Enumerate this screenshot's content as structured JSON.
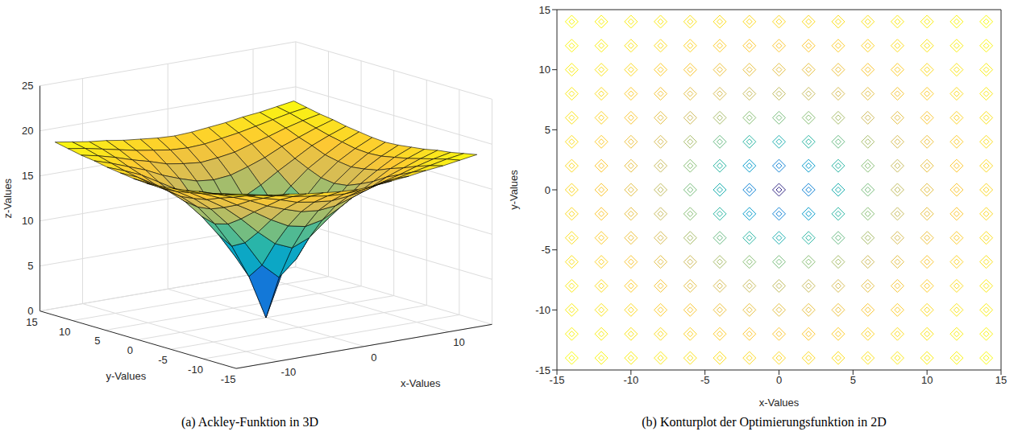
{
  "chart_data": [
    {
      "type": "surface3d",
      "caption": "(a) Ackley-Funktion in 3D",
      "x_label": "x-Values",
      "y_label": "y-Values",
      "z_label": "z-Values",
      "xlim": [
        -15,
        15
      ],
      "ylim": [
        -15,
        15
      ],
      "zlim": [
        0,
        25
      ],
      "xticks": [
        -10,
        0,
        10
      ],
      "yticks": [
        -15,
        -10,
        -5,
        0,
        5,
        10,
        15
      ],
      "zticks": [
        0,
        5,
        10,
        15,
        20,
        25
      ],
      "grid": true,
      "x": [
        -14,
        -12,
        -10,
        -8,
        -6,
        -4,
        -2,
        0,
        2,
        4,
        6,
        8,
        10,
        12,
        14
      ],
      "y": [
        -14,
        -12,
        -10,
        -8,
        -6,
        -4,
        -2,
        0,
        2,
        4,
        6,
        8,
        10,
        12,
        14
      ],
      "z": [
        [
          18.8,
          18.5,
          18.2,
          18.0,
          17.7,
          17.5,
          17.3,
          17.2,
          17.3,
          17.5,
          17.7,
          18.0,
          18.2,
          18.5,
          18.8
        ],
        [
          18.5,
          18.2,
          17.8,
          17.4,
          17.0,
          16.7,
          16.4,
          16.3,
          16.4,
          16.7,
          17.0,
          17.4,
          17.8,
          18.2,
          18.5
        ],
        [
          18.2,
          17.8,
          17.3,
          16.7,
          16.2,
          15.6,
          15.3,
          15.1,
          15.3,
          15.6,
          16.2,
          16.7,
          17.3,
          17.8,
          18.2
        ],
        [
          18.0,
          17.4,
          16.7,
          16.0,
          15.1,
          14.4,
          13.8,
          13.6,
          13.8,
          14.4,
          15.1,
          16.0,
          16.7,
          17.4,
          18.0
        ],
        [
          17.7,
          17.0,
          16.2,
          15.1,
          14.0,
          12.8,
          11.8,
          11.4,
          11.8,
          12.8,
          14.0,
          15.1,
          16.2,
          17.0,
          17.7
        ],
        [
          17.5,
          16.7,
          15.6,
          14.4,
          12.8,
          11.0,
          9.4,
          8.6,
          9.4,
          11.0,
          12.8,
          14.4,
          15.6,
          16.7,
          17.5
        ],
        [
          17.3,
          16.4,
          15.3,
          13.8,
          11.8,
          9.4,
          6.6,
          4.9,
          6.6,
          9.4,
          11.8,
          13.8,
          15.3,
          16.4,
          17.3
        ],
        [
          17.2,
          16.3,
          15.1,
          13.6,
          11.4,
          8.6,
          4.9,
          0,
          4.9,
          8.6,
          11.4,
          13.6,
          15.1,
          16.3,
          17.2
        ],
        [
          17.3,
          16.4,
          15.3,
          13.8,
          11.8,
          9.4,
          6.6,
          4.9,
          6.6,
          9.4,
          11.8,
          13.8,
          15.3,
          16.4,
          17.3
        ],
        [
          17.5,
          16.7,
          15.6,
          14.4,
          12.8,
          11.0,
          9.4,
          8.6,
          9.4,
          11.0,
          12.8,
          14.4,
          15.6,
          16.7,
          17.5
        ],
        [
          17.7,
          17.0,
          16.2,
          15.1,
          14.0,
          12.8,
          11.8,
          11.4,
          11.8,
          12.8,
          14.0,
          15.1,
          16.2,
          17.0,
          17.7
        ],
        [
          18.0,
          17.4,
          16.7,
          16.0,
          15.1,
          14.4,
          13.8,
          13.6,
          13.8,
          14.4,
          15.1,
          16.0,
          16.7,
          17.4,
          18.0
        ],
        [
          18.2,
          17.8,
          17.3,
          16.7,
          16.2,
          15.6,
          15.3,
          15.1,
          15.3,
          15.6,
          16.2,
          16.7,
          17.3,
          17.8,
          18.2
        ],
        [
          18.5,
          18.2,
          17.8,
          17.4,
          17.0,
          16.7,
          16.4,
          16.3,
          16.4,
          16.7,
          17.0,
          17.4,
          17.8,
          18.2,
          18.5
        ],
        [
          18.8,
          18.5,
          18.2,
          18.0,
          17.7,
          17.5,
          17.3,
          17.2,
          17.3,
          17.5,
          17.7,
          18.0,
          18.2,
          18.5,
          18.8
        ]
      ]
    },
    {
      "type": "contour",
      "caption": "(b) Konturplot der Optimierungsfunktion in 2D",
      "x_label": "x-Values",
      "y_label": "y-Values",
      "xlim": [
        -15,
        15
      ],
      "ylim": [
        -15,
        15
      ],
      "xticks": [
        -15,
        -10,
        -5,
        0,
        5,
        10,
        15
      ],
      "yticks": [
        -15,
        -10,
        -5,
        0,
        5,
        10,
        15
      ],
      "grid": false,
      "x": [
        -14,
        -12,
        -10,
        -8,
        -6,
        -4,
        -2,
        0,
        2,
        4,
        6,
        8,
        10,
        12,
        14
      ],
      "y": [
        -14,
        -12,
        -10,
        -8,
        -6,
        -4,
        -2,
        0,
        2,
        4,
        6,
        8,
        10,
        12,
        14
      ],
      "z": [
        [
          18.8,
          18.5,
          18.2,
          18.0,
          17.7,
          17.5,
          17.3,
          17.2,
          17.3,
          17.5,
          17.7,
          18.0,
          18.2,
          18.5,
          18.8
        ],
        [
          18.5,
          18.2,
          17.8,
          17.4,
          17.0,
          16.7,
          16.4,
          16.3,
          16.4,
          16.7,
          17.0,
          17.4,
          17.8,
          18.2,
          18.5
        ],
        [
          18.2,
          17.8,
          17.3,
          16.7,
          16.2,
          15.6,
          15.3,
          15.1,
          15.3,
          15.6,
          16.2,
          16.7,
          17.3,
          17.8,
          18.2
        ],
        [
          18.0,
          17.4,
          16.7,
          16.0,
          15.1,
          14.4,
          13.8,
          13.6,
          13.8,
          14.4,
          15.1,
          16.0,
          16.7,
          17.4,
          18.0
        ],
        [
          17.7,
          17.0,
          16.2,
          15.1,
          14.0,
          12.8,
          11.8,
          11.4,
          11.8,
          12.8,
          14.0,
          15.1,
          16.2,
          17.0,
          17.7
        ],
        [
          17.5,
          16.7,
          15.6,
          14.4,
          12.8,
          11.0,
          9.4,
          8.6,
          9.4,
          11.0,
          12.8,
          14.4,
          15.6,
          16.7,
          17.5
        ],
        [
          17.3,
          16.4,
          15.3,
          13.8,
          11.8,
          9.4,
          6.6,
          4.9,
          6.6,
          9.4,
          11.8,
          13.8,
          15.3,
          16.4,
          17.3
        ],
        [
          17.2,
          16.3,
          15.1,
          13.6,
          11.4,
          8.6,
          4.9,
          0,
          4.9,
          8.6,
          11.4,
          13.6,
          15.1,
          16.3,
          17.2
        ],
        [
          17.3,
          16.4,
          15.3,
          13.8,
          11.8,
          9.4,
          6.6,
          4.9,
          6.6,
          9.4,
          11.8,
          13.8,
          15.3,
          16.4,
          17.3
        ],
        [
          17.5,
          16.7,
          15.6,
          14.4,
          12.8,
          11.0,
          9.4,
          8.6,
          9.4,
          11.0,
          12.8,
          14.4,
          15.6,
          16.7,
          17.5
        ],
        [
          17.7,
          17.0,
          16.2,
          15.1,
          14.0,
          12.8,
          11.8,
          11.4,
          11.8,
          12.8,
          14.0,
          15.1,
          16.2,
          17.0,
          17.7
        ],
        [
          18.0,
          17.4,
          16.7,
          16.0,
          15.1,
          14.4,
          13.8,
          13.6,
          13.8,
          14.4,
          15.1,
          16.0,
          16.7,
          17.4,
          18.0
        ],
        [
          18.2,
          17.8,
          17.3,
          16.7,
          16.2,
          15.6,
          15.3,
          15.1,
          15.3,
          15.6,
          16.2,
          16.7,
          17.3,
          17.8,
          18.2
        ],
        [
          18.5,
          18.2,
          17.8,
          17.4,
          17.0,
          16.7,
          16.4,
          16.3,
          16.4,
          16.7,
          17.0,
          17.4,
          17.8,
          18.2,
          18.5
        ],
        [
          18.8,
          18.5,
          18.2,
          18.0,
          17.7,
          17.5,
          17.3,
          17.2,
          17.3,
          17.5,
          17.7,
          18.0,
          18.2,
          18.5,
          18.8
        ]
      ]
    }
  ]
}
